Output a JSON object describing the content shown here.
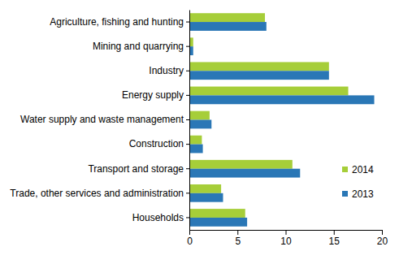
{
  "chart_data": {
    "type": "bar",
    "orientation": "horizontal",
    "categories": [
      "Agriculture, fishing and hunting",
      "Mining and quarrying",
      "Industry",
      "Energy supply",
      "Water supply and waste management",
      "Construction",
      "Transport and storage",
      "Trade, other services and administration",
      "Households"
    ],
    "series": [
      {
        "name": "2014",
        "color": "#a6ce39",
        "values": [
          7.85,
          0.4,
          14.5,
          16.5,
          2.1,
          1.3,
          10.7,
          3.3,
          5.8
        ]
      },
      {
        "name": "2013",
        "color": "#2a77b6",
        "values": [
          8.0,
          0.4,
          14.5,
          19.2,
          2.3,
          1.4,
          11.5,
          3.5,
          6.0
        ]
      }
    ],
    "xlim": [
      0,
      20
    ],
    "xticks": [
      0,
      5,
      10,
      15,
      20
    ],
    "grid": false,
    "legend": "right"
  }
}
